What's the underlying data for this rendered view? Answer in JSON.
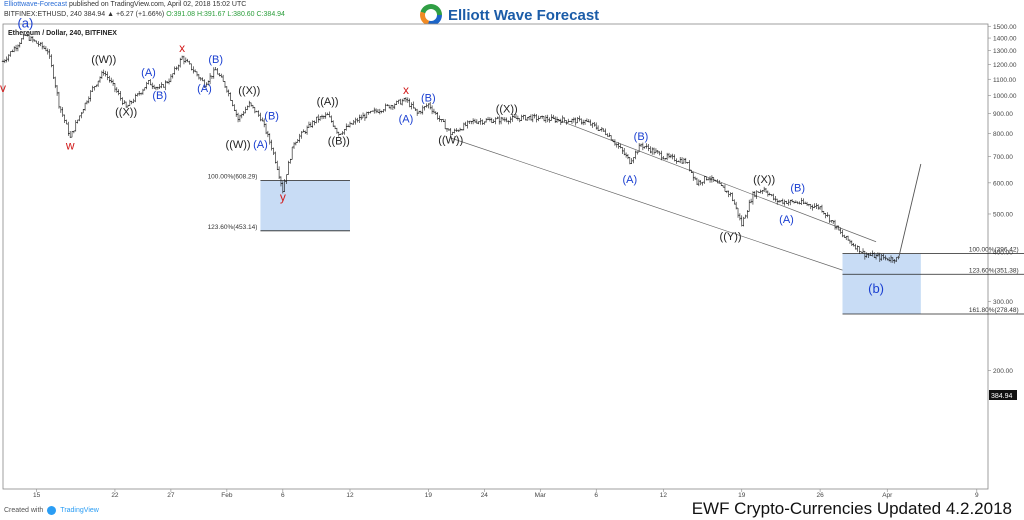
{
  "header": {
    "publisher": "Elliottwave-Forecast",
    "published_text": "published on TradingView.com, April 02, 2018 15:02 UTC",
    "symbol": "BITFINEX:ETHUSD, 240",
    "ohlc_prefix": "384.94 ▲ +6.27 (+1.66%)",
    "open": "O:391.08",
    "high": "H:391.67",
    "low": "L:380.60",
    "close": "C:384.94"
  },
  "brand": {
    "name": "Elliott Wave Forecast",
    "logo_icon": "ewf-globe-icon"
  },
  "footer": {
    "created_with": "Created with",
    "tradingview": "TradingView",
    "caption": "EWF Crypto-Currencies Updated 4.2.2018"
  },
  "chart_data": {
    "type": "candlestick",
    "title": "Ethereum / Dollar, 240, BITFINEX",
    "last_price": "384.94",
    "ylim": [
      100,
      1520
    ],
    "y_scale": "log",
    "y_ticks": [
      200,
      300,
      400,
      500,
      600,
      700,
      800,
      900,
      1000,
      1100,
      1200,
      1300,
      1400,
      1500
    ],
    "y_tick_labels": [
      "200.00",
      "300.00",
      "400.00",
      "500.00",
      "600.00",
      "700.00",
      "800.00",
      "900.00",
      "1000.00",
      "1100.00",
      "1200.00",
      "1300.00",
      "1400.00",
      "1500.00"
    ],
    "x_range": [
      "2018-01-12",
      "2018-04-10"
    ],
    "x_ticks": [
      {
        "date": "2018-01-15",
        "label": "15"
      },
      {
        "date": "2018-01-22",
        "label": "22"
      },
      {
        "date": "2018-01-27",
        "label": "27"
      },
      {
        "date": "2018-02-01",
        "label": "Feb"
      },
      {
        "date": "2018-02-06",
        "label": "6"
      },
      {
        "date": "2018-02-12",
        "label": "12"
      },
      {
        "date": "2018-02-19",
        "label": "19"
      },
      {
        "date": "2018-02-24",
        "label": "24"
      },
      {
        "date": "2018-03-01",
        "label": "Mar"
      },
      {
        "date": "2018-03-06",
        "label": "6"
      },
      {
        "date": "2018-03-12",
        "label": "12"
      },
      {
        "date": "2018-03-19",
        "label": "19"
      },
      {
        "date": "2018-03-26",
        "label": "26"
      },
      {
        "date": "2018-04-01",
        "label": "Apr"
      },
      {
        "date": "2018-04-09",
        "label": "9"
      }
    ],
    "swing_points": [
      {
        "date": "2018-01-12",
        "value": 1220
      },
      {
        "date": "2018-01-14",
        "value": 1420
      },
      {
        "date": "2018-01-16",
        "value": 1300
      },
      {
        "date": "2018-01-17",
        "value": 950
      },
      {
        "date": "2018-01-18",
        "value": 780
      },
      {
        "date": "2018-01-20",
        "value": 1040
      },
      {
        "date": "2018-01-21",
        "value": 1150
      },
      {
        "date": "2018-01-23",
        "value": 930
      },
      {
        "date": "2018-01-24",
        "value": 1000
      },
      {
        "date": "2018-01-25",
        "value": 1080
      },
      {
        "date": "2018-01-26",
        "value": 1040
      },
      {
        "date": "2018-01-27",
        "value": 1110
      },
      {
        "date": "2018-01-28",
        "value": 1250
      },
      {
        "date": "2018-01-30",
        "value": 1070
      },
      {
        "date": "2018-01-31",
        "value": 1160
      },
      {
        "date": "2018-02-01",
        "value": 1040
      },
      {
        "date": "2018-02-02",
        "value": 870
      },
      {
        "date": "2018-02-03",
        "value": 950
      },
      {
        "date": "2018-02-04",
        "value": 880
      },
      {
        "date": "2018-02-05",
        "value": 740
      },
      {
        "date": "2018-02-06",
        "value": 575
      },
      {
        "date": "2018-02-07",
        "value": 760
      },
      {
        "date": "2018-02-09",
        "value": 870
      },
      {
        "date": "2018-02-10",
        "value": 890
      },
      {
        "date": "2018-02-11",
        "value": 800
      },
      {
        "date": "2018-02-13",
        "value": 880
      },
      {
        "date": "2018-02-15",
        "value": 930
      },
      {
        "date": "2018-02-17",
        "value": 975
      },
      {
        "date": "2018-02-18",
        "value": 900
      },
      {
        "date": "2018-02-19",
        "value": 950
      },
      {
        "date": "2018-02-20",
        "value": 870
      },
      {
        "date": "2018-02-21",
        "value": 800
      },
      {
        "date": "2018-02-23",
        "value": 860
      },
      {
        "date": "2018-02-26",
        "value": 870
      },
      {
        "date": "2018-02-28",
        "value": 880
      },
      {
        "date": "2018-03-02",
        "value": 870
      },
      {
        "date": "2018-03-05",
        "value": 860
      },
      {
        "date": "2018-03-07",
        "value": 800
      },
      {
        "date": "2018-03-09",
        "value": 680
      },
      {
        "date": "2018-03-10",
        "value": 750
      },
      {
        "date": "2018-03-12",
        "value": 700
      },
      {
        "date": "2018-03-14",
        "value": 680
      },
      {
        "date": "2018-03-15",
        "value": 600
      },
      {
        "date": "2018-03-16",
        "value": 620
      },
      {
        "date": "2018-03-18",
        "value": 560
      },
      {
        "date": "2018-03-19",
        "value": 470
      },
      {
        "date": "2018-03-20",
        "value": 560
      },
      {
        "date": "2018-03-21",
        "value": 580
      },
      {
        "date": "2018-03-22",
        "value": 540
      },
      {
        "date": "2018-03-24",
        "value": 535
      },
      {
        "date": "2018-03-26",
        "value": 520
      },
      {
        "date": "2018-03-28",
        "value": 440
      },
      {
        "date": "2018-03-30",
        "value": 395
      },
      {
        "date": "2018-04-01",
        "value": 385
      },
      {
        "date": "2018-04-02",
        "value": 385
      }
    ],
    "projection": {
      "from": {
        "date": "2018-04-02",
        "value": 385
      },
      "to": {
        "date": "2018-04-04",
        "value": 670
      }
    },
    "channel_lines": [
      {
        "from": {
          "date": "2018-03-02",
          "value": 880
        },
        "to": {
          "date": "2018-03-31",
          "value": 425
        }
      },
      {
        "from": {
          "date": "2018-02-21",
          "value": 780
        },
        "to": {
          "date": "2018-03-28",
          "value": 360
        }
      }
    ],
    "fib_boxes": [
      {
        "x_from": "2018-02-04",
        "x_to": "2018-02-12",
        "top": 608.29,
        "bottom": 453.14,
        "levels": [
          {
            "label": "100.00%(608.29)",
            "value": 608.29
          },
          {
            "label": "123.60%(453.14)",
            "value": 453.14
          }
        ]
      },
      {
        "x_from": "2018-03-28",
        "x_to": "2018-04-04",
        "top": 396.42,
        "bottom": 278.48,
        "levels": [
          {
            "label": "100.00%(396.42)",
            "value": 396.42
          },
          {
            "label": "123.60%(351.38)",
            "value": 351.38
          },
          {
            "label": "161.80%(278.48)",
            "value": 278.48
          }
        ]
      }
    ],
    "annotations": [
      {
        "text": "(a)",
        "date": "2018-01-14",
        "value": 1490,
        "color": "#1a3fd1",
        "size": 13
      },
      {
        "text": "w",
        "date": "2018-01-18",
        "value": 730,
        "color": "#d11a1a",
        "size": 12
      },
      {
        "text": "((W))",
        "date": "2018-01-21",
        "value": 1210,
        "color": "#222222",
        "size": 11
      },
      {
        "text": "((X))",
        "date": "2018-01-23",
        "value": 890,
        "color": "#222222",
        "size": 11
      },
      {
        "text": "(A)",
        "date": "2018-01-25",
        "value": 1120,
        "color": "#1a3fd1",
        "size": 11
      },
      {
        "text": "(B)",
        "date": "2018-01-26",
        "value": 980,
        "color": "#1a3fd1",
        "size": 11
      },
      {
        "text": "x",
        "date": "2018-01-28",
        "value": 1290,
        "color": "#d11a1a",
        "size": 12
      },
      {
        "text": "(B)",
        "date": "2018-01-31",
        "value": 1210,
        "color": "#1a3fd1",
        "size": 11
      },
      {
        "text": "(A)",
        "date": "2018-01-30",
        "value": 1020,
        "color": "#1a3fd1",
        "size": 11
      },
      {
        "text": "((X))",
        "date": "2018-02-03",
        "value": 1010,
        "color": "#222222",
        "size": 11
      },
      {
        "text": "(B)",
        "date": "2018-02-05",
        "value": 870,
        "color": "#1a3fd1",
        "size": 11
      },
      {
        "text": "((W))",
        "date": "2018-02-02",
        "value": 735,
        "color": "#222222",
        "size": 11
      },
      {
        "text": "(A)",
        "date": "2018-02-04",
        "value": 735,
        "color": "#1a3fd1",
        "size": 11
      },
      {
        "text": "y",
        "date": "2018-02-06",
        "value": 540,
        "color": "#d11a1a",
        "size": 12
      },
      {
        "text": "((A))",
        "date": "2018-02-10",
        "value": 945,
        "color": "#222222",
        "size": 11
      },
      {
        "text": "((B))",
        "date": "2018-02-11",
        "value": 750,
        "color": "#222222",
        "size": 11
      },
      {
        "text": "x",
        "date": "2018-02-17",
        "value": 1010,
        "color": "#d11a1a",
        "size": 12
      },
      {
        "text": "(B)",
        "date": "2018-02-19",
        "value": 965,
        "color": "#1a3fd1",
        "size": 11
      },
      {
        "text": "(A)",
        "date": "2018-02-17",
        "value": 855,
        "color": "#1a3fd1",
        "size": 11
      },
      {
        "text": "((X))",
        "date": "2018-02-26",
        "value": 905,
        "color": "#222222",
        "size": 11
      },
      {
        "text": "((W))",
        "date": "2018-02-21",
        "value": 755,
        "color": "#222222",
        "size": 11
      },
      {
        "text": "(B)",
        "date": "2018-03-10",
        "value": 770,
        "color": "#1a3fd1",
        "size": 11
      },
      {
        "text": "(A)",
        "date": "2018-03-09",
        "value": 600,
        "color": "#1a3fd1",
        "size": 11
      },
      {
        "text": "((X))",
        "date": "2018-03-21",
        "value": 600,
        "color": "#222222",
        "size": 11
      },
      {
        "text": "((Y))",
        "date": "2018-03-18",
        "value": 430,
        "color": "#222222",
        "size": 11
      },
      {
        "text": "(B)",
        "date": "2018-03-24",
        "value": 570,
        "color": "#1a3fd1",
        "size": 11
      },
      {
        "text": "(A)",
        "date": "2018-03-23",
        "value": 475,
        "color": "#1a3fd1",
        "size": 11
      },
      {
        "text": "(b)",
        "date": "2018-03-31",
        "value": 315,
        "color": "#1a3fd1",
        "size": 13
      },
      {
        "text": "v",
        "date": "2018-01-12",
        "value": 1020,
        "color": "#d11a1a",
        "size": 12
      }
    ]
  },
  "colors": {
    "box_fill": "#c8dcf5",
    "box_stroke": "#222222",
    "wave_blue": "#1a3fd1",
    "wave_red": "#d11a1a"
  }
}
